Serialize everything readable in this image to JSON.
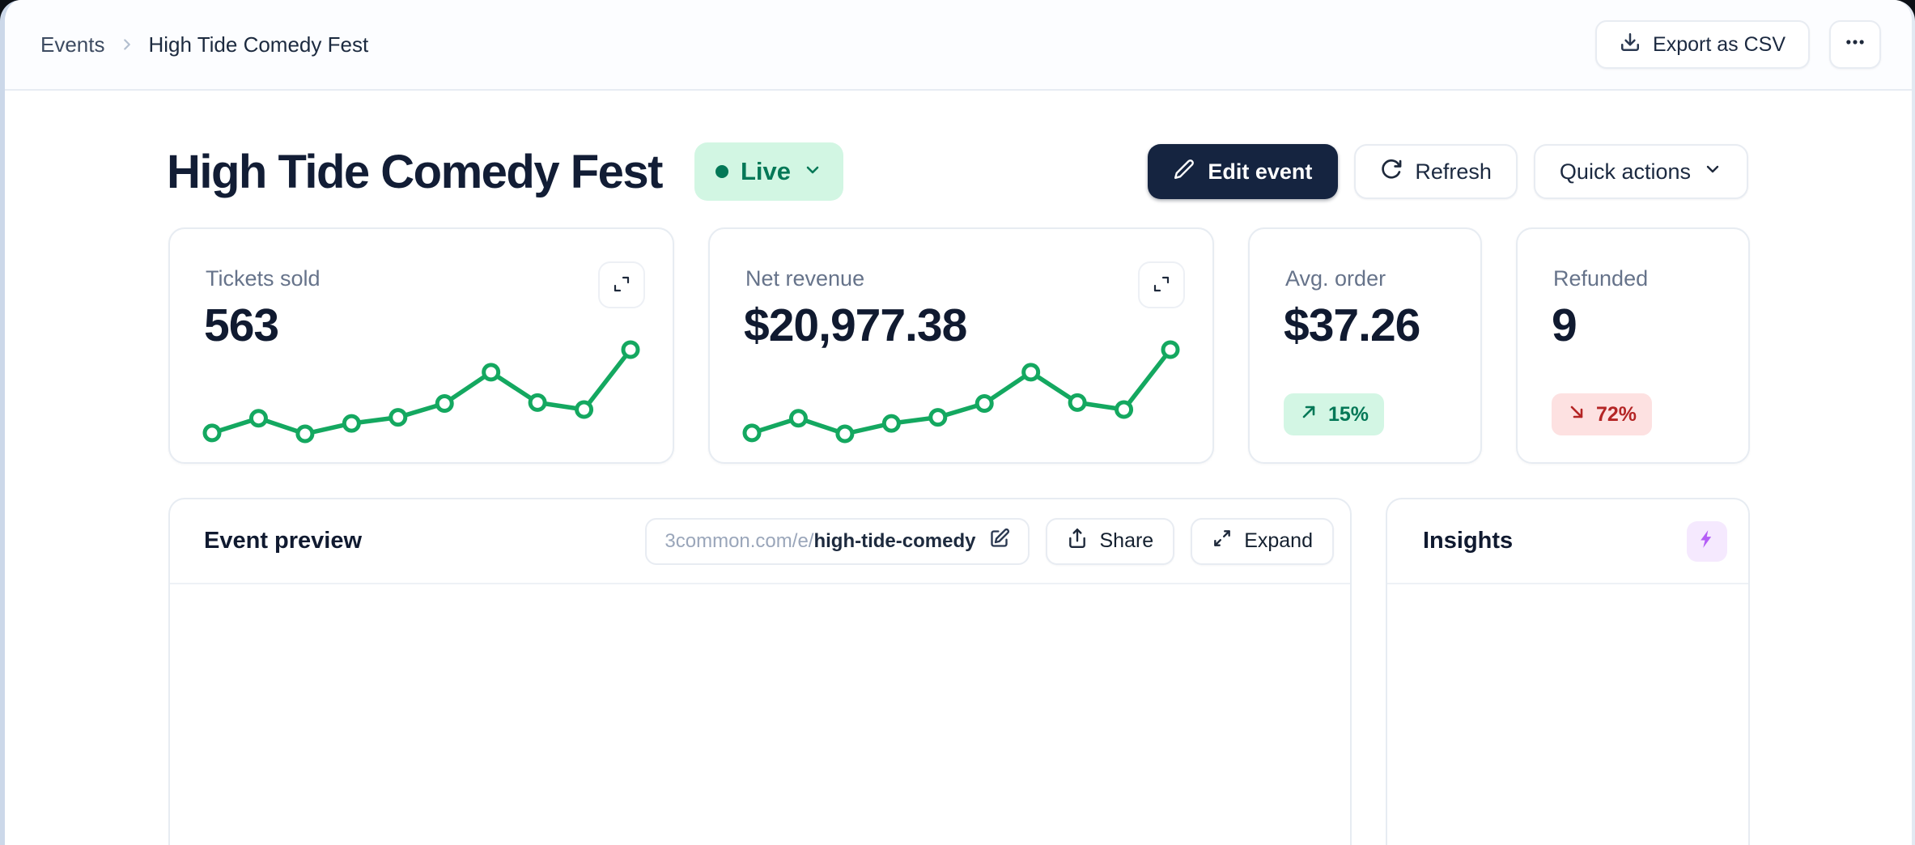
{
  "breadcrumb": {
    "root": "Events",
    "current": "High Tide Comedy Fest"
  },
  "topbar": {
    "export_label": "Export as CSV"
  },
  "hero": {
    "title": "High Tide Comedy Fest",
    "status_label": "Live",
    "edit_label": "Edit event",
    "refresh_label": "Refresh",
    "quick_actions_label": "Quick actions"
  },
  "stats": {
    "cards": [
      {
        "label": "Tickets sold",
        "value": "563"
      },
      {
        "label": "Net revenue",
        "value": "$20,977.38"
      },
      {
        "label": "Avg. order",
        "value": "$37.26",
        "delta": {
          "direction": "up",
          "value": "15%"
        }
      },
      {
        "label": "Refunded",
        "value": "9",
        "delta": {
          "direction": "down",
          "value": "72%"
        }
      }
    ]
  },
  "chart_data": [
    {
      "type": "line",
      "title": "Tickets sold sparkline",
      "values": [
        4,
        21,
        3,
        15,
        22,
        38,
        74,
        39,
        31,
        100
      ],
      "x": [
        1,
        2,
        3,
        4,
        5,
        6,
        7,
        8,
        9,
        10
      ],
      "xlabel": "",
      "ylabel": "",
      "axis": "none",
      "grid": false,
      "markers": true,
      "color": "#14a860"
    },
    {
      "type": "line",
      "title": "Net revenue sparkline",
      "values": [
        4,
        21,
        3,
        15,
        22,
        38,
        74,
        39,
        31,
        100
      ],
      "x": [
        1,
        2,
        3,
        4,
        5,
        6,
        7,
        8,
        9,
        10
      ],
      "xlabel": "",
      "ylabel": "",
      "axis": "none",
      "grid": false,
      "markers": true,
      "color": "#14a860"
    }
  ],
  "preview": {
    "title": "Event preview",
    "url_prefix": "3common.com/e/",
    "url_slug": "high-tide-comedy",
    "share_label": "Share",
    "expand_label": "Expand"
  },
  "insights": {
    "title": "Insights"
  },
  "colors": {
    "accent_green": "#14a860",
    "live_bg": "#d2f6e3",
    "live_text": "#047857",
    "delta_up_bg": "#d3f6e4",
    "delta_up_text": "#047857",
    "delta_down_bg": "#fde1e1",
    "delta_down_text": "#b42525",
    "dark_button": "#152440",
    "insight_badge_bg": "#f5e9fe",
    "insight_bolt": "#b45ef6"
  }
}
